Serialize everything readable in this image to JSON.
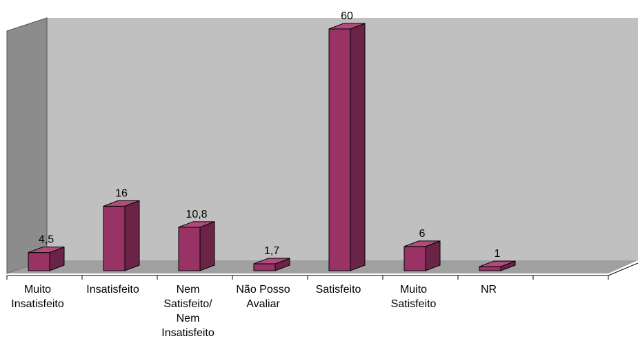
{
  "chart_data": {
    "type": "bar",
    "style": "3d-column",
    "categories": [
      "Muito Insatisfeito",
      "Insatisfeito",
      "Nem Satisfeito/ Nem Insatisfeito",
      "Não Posso Avaliar",
      "Satisfeito",
      "Muito Satisfeito",
      "NR"
    ],
    "values": [
      4.5,
      16,
      10.8,
      1.7,
      60,
      6,
      1
    ],
    "value_labels": [
      "4,5",
      "16",
      "10,8",
      "1,7",
      "60",
      "6",
      "1"
    ],
    "ylim": [
      0,
      60
    ],
    "grid": false,
    "legend": "none",
    "colors": {
      "bar_front": "#993366",
      "bar_side": "#6b2447",
      "bar_top": "#b24a7d",
      "back_wall": "#c0c0c0",
      "side_wall": "#8c8c8c",
      "floor": "#a0a0a0"
    }
  }
}
